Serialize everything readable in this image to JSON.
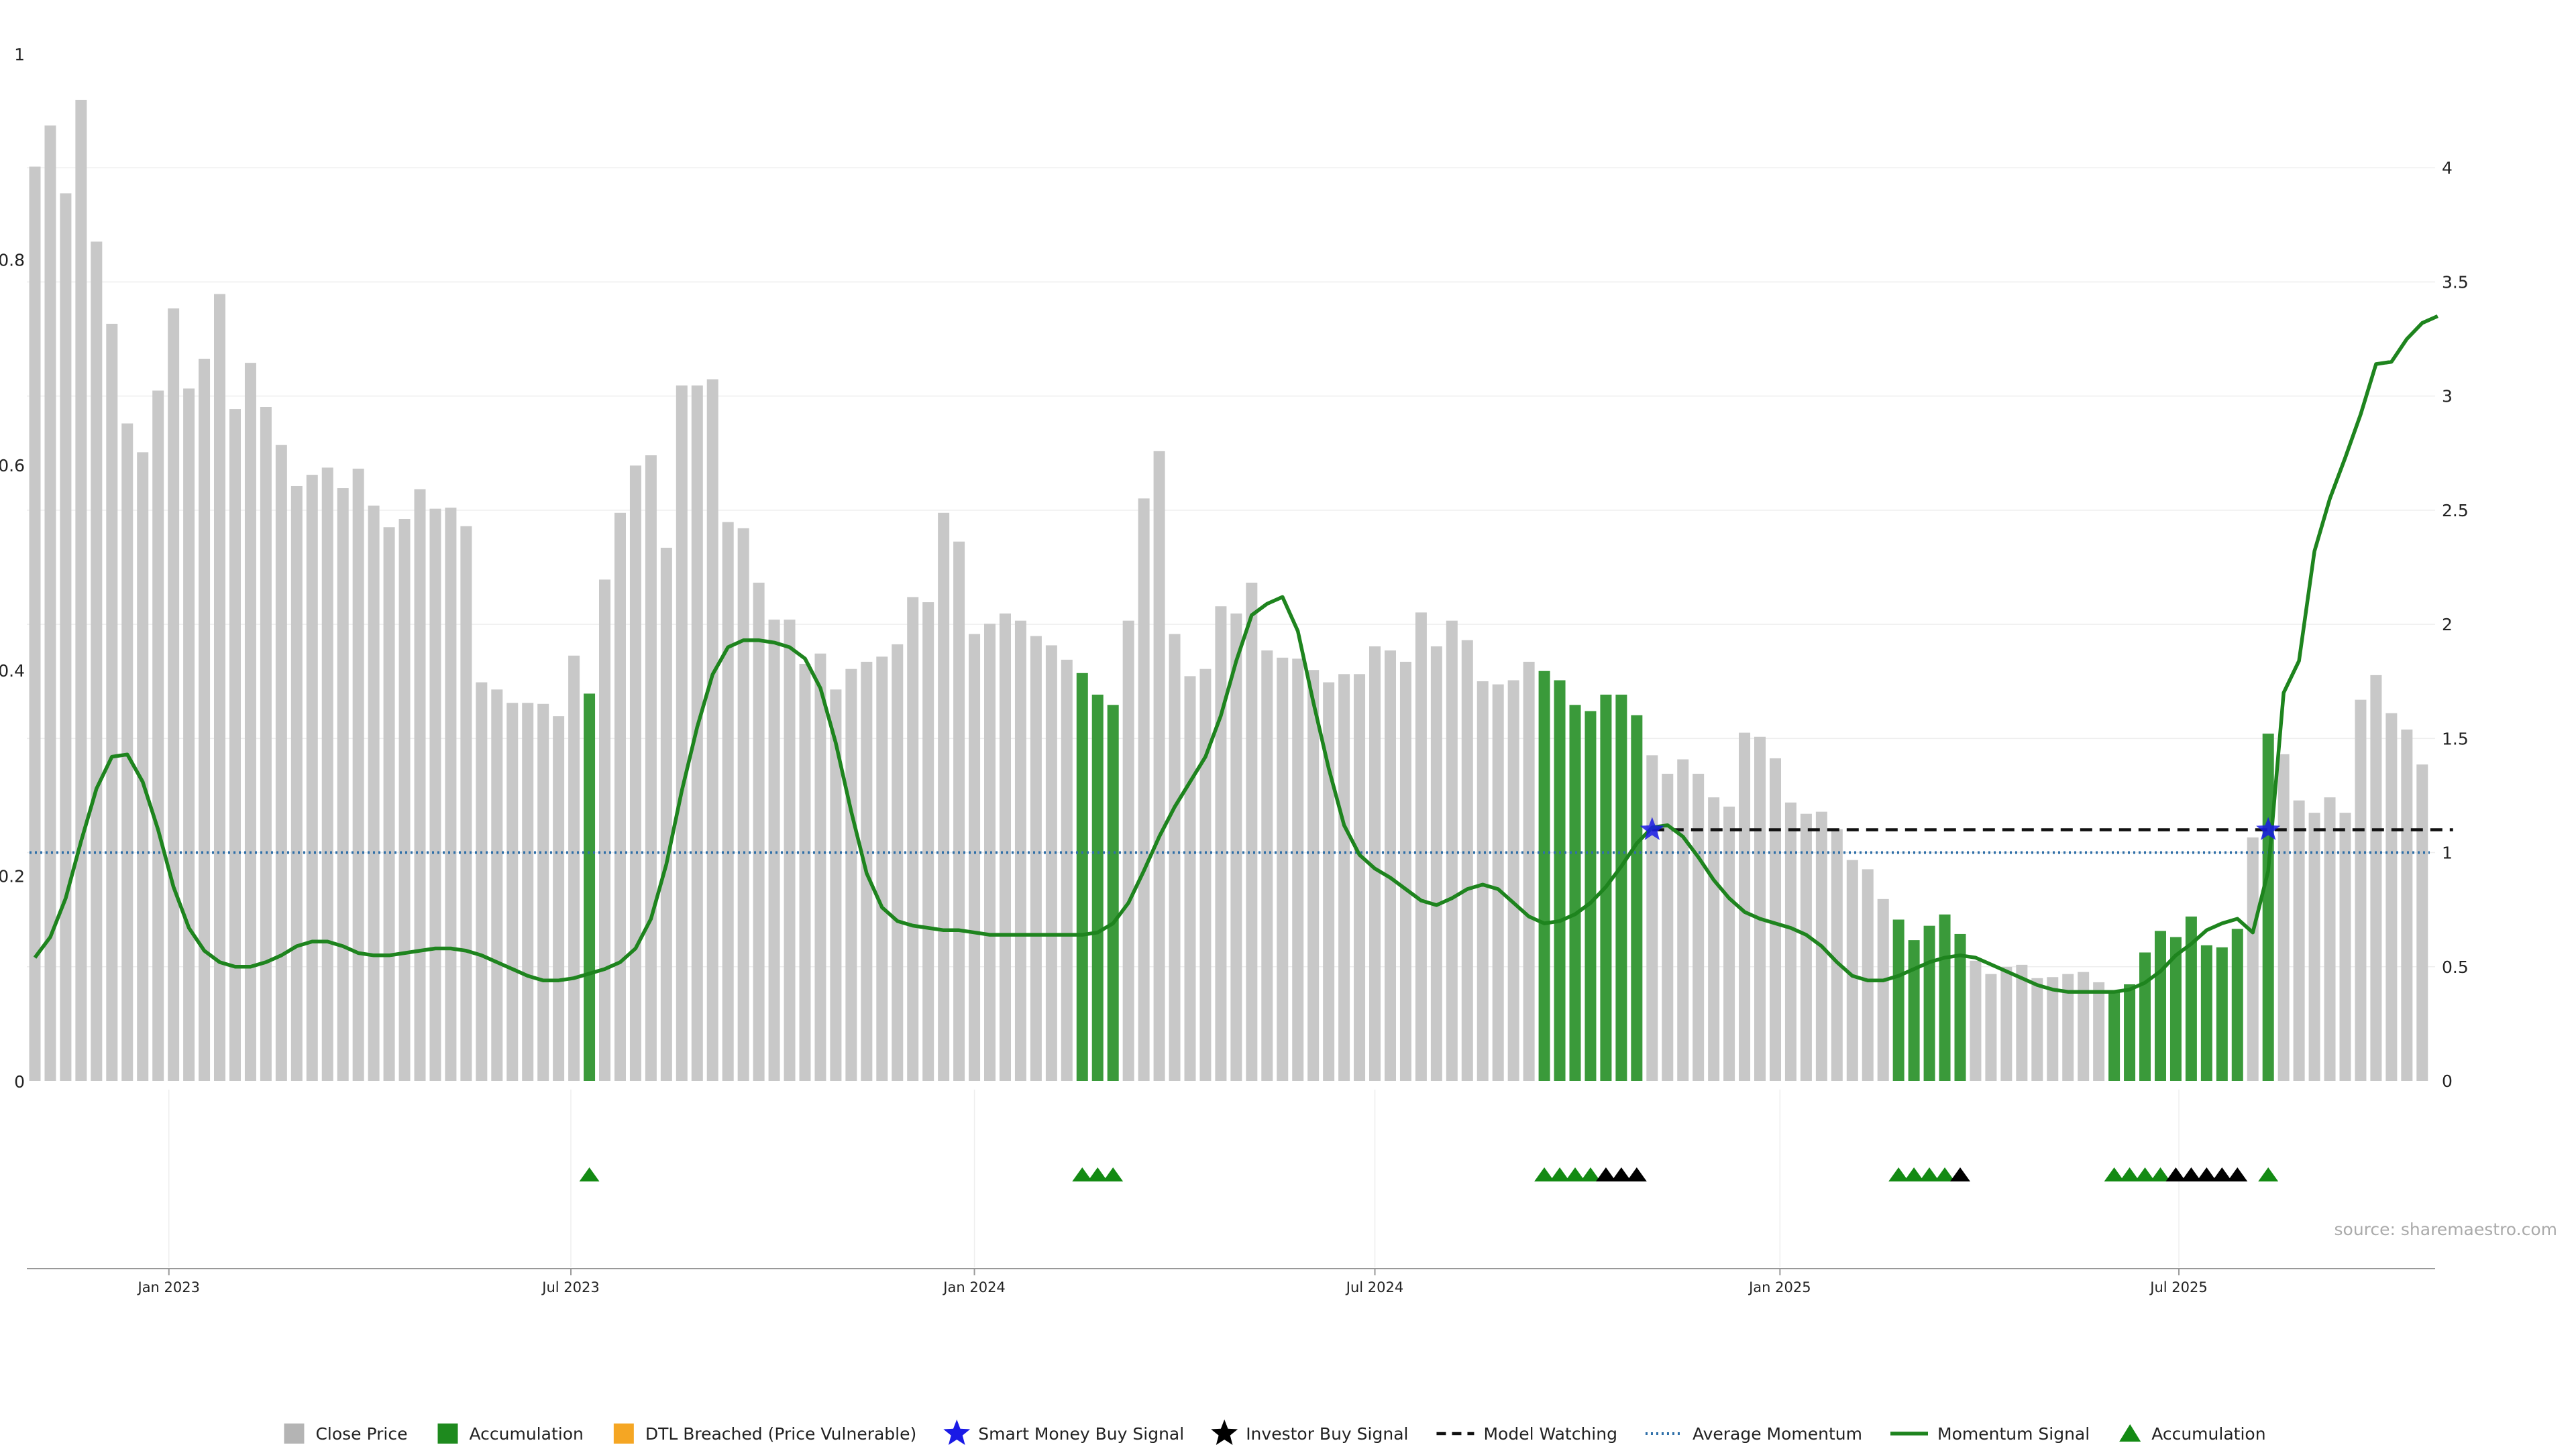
{
  "source_text": "source: sharemaestro.com",
  "colors": {
    "price_bar": "#c8c8c8",
    "accumulation_bar": "#3a9a3a",
    "dtl": "#f5a623",
    "momentum_line": "#1e841e",
    "average_momentum": "#2f6fa8",
    "model_watching": "#111111",
    "smart_money": "#1a1ae6",
    "investor": "#000000",
    "accum_marker": "#138a13",
    "grid": "#eeeeee",
    "axis": "#999999"
  },
  "legend": [
    {
      "key": "close-price",
      "label": "Close Price",
      "symbol": "square",
      "color": "#b4b4b4"
    },
    {
      "key": "accumulation-bar",
      "label": "Accumulation",
      "symbol": "square",
      "color": "#1e8a1e"
    },
    {
      "key": "dtl-breached",
      "label": "DTL Breached (Price Vulnerable)",
      "symbol": "square",
      "color": "#f5a623"
    },
    {
      "key": "smart-money",
      "label": "Smart Money Buy Signal",
      "symbol": "star",
      "color": "#1a1ae6"
    },
    {
      "key": "investor-buy",
      "label": "Investor Buy Signal",
      "symbol": "star",
      "color": "#000000"
    },
    {
      "key": "model-watching",
      "label": "Model Watching",
      "symbol": "dash",
      "color": "#111111"
    },
    {
      "key": "average-momentum",
      "label": "Average Momentum",
      "symbol": "dot",
      "color": "#2f6fa8"
    },
    {
      "key": "momentum-signal",
      "label": "Momentum Signal",
      "symbol": "line",
      "color": "#1e841e"
    },
    {
      "key": "accumulation-marker",
      "label": "Accumulation",
      "symbol": "triangle",
      "color": "#138a13"
    }
  ],
  "chart_data": {
    "type": "bar",
    "x_ticks": [
      {
        "week": 8.7,
        "label": "Jan 2023"
      },
      {
        "week": 34.8,
        "label": "Jul 2023"
      },
      {
        "week": 61.0,
        "label": "Jan 2024"
      },
      {
        "week": 87.0,
        "label": "Jul 2024"
      },
      {
        "week": 113.3,
        "label": "Jan 2025"
      },
      {
        "week": 139.2,
        "label": "Jul 2025"
      }
    ],
    "y_left": {
      "min": 0,
      "max": 1,
      "ticks": [
        0,
        0.2,
        0.4,
        0.6,
        0.8,
        1
      ],
      "tick_labels": [
        "0",
        "0.2",
        "0.4",
        "0.6",
        "0.8",
        "1"
      ]
    },
    "y_right": {
      "min": 0,
      "max": 4.5,
      "ticks": [
        0,
        0.5,
        1,
        1.5,
        2,
        2.5,
        3,
        3.5,
        4
      ],
      "tick_labels": [
        "0",
        "0.5",
        "1",
        "1.5",
        "2",
        "2.5",
        "3",
        "3.5",
        "4"
      ]
    },
    "grid": true,
    "legend_position": "bottom",
    "close_price": [
      0.89,
      0.93,
      0.864,
      0.955,
      0.817,
      0.737,
      0.64,
      0.612,
      0.672,
      0.752,
      0.674,
      0.703,
      0.766,
      0.654,
      0.699,
      0.656,
      0.619,
      0.579,
      0.59,
      0.597,
      0.577,
      0.596,
      0.56,
      0.539,
      0.547,
      0.576,
      0.557,
      0.558,
      0.54,
      0.388,
      0.381,
      0.368,
      0.368,
      0.367,
      0.355,
      0.414,
      0.377,
      0.488,
      0.553,
      0.599,
      0.609,
      0.519,
      0.677,
      0.677,
      0.683,
      0.544,
      0.538,
      0.485,
      0.449,
      0.449,
      0.406,
      0.416,
      0.381,
      0.401,
      0.408,
      0.413,
      0.425,
      0.471,
      0.466,
      0.553,
      0.525,
      0.435,
      0.445,
      0.455,
      0.448,
      0.433,
      0.424,
      0.41,
      0.397,
      0.376,
      0.366,
      0.448,
      0.567,
      0.613,
      0.435,
      0.394,
      0.401,
      0.462,
      0.455,
      0.485,
      0.419,
      0.412,
      0.411,
      0.4,
      0.388,
      0.396,
      0.396,
      0.423,
      0.419,
      0.408,
      0.456,
      0.423,
      0.448,
      0.429,
      0.389,
      0.386,
      0.39,
      0.408,
      0.399,
      0.39,
      0.366,
      0.36,
      0.376,
      0.376,
      0.356,
      0.317,
      0.299,
      0.313,
      0.299,
      0.276,
      0.267,
      0.339,
      0.335,
      0.314,
      0.271,
      0.26,
      0.262,
      0.245,
      0.215,
      0.206,
      0.177,
      0.157,
      0.137,
      0.151,
      0.162,
      0.143,
      0.117,
      0.104,
      0.111,
      0.113,
      0.1,
      0.101,
      0.104,
      0.106,
      0.096,
      0.088,
      0.094,
      0.125,
      0.146,
      0.14,
      0.16,
      0.132,
      0.13,
      0.148,
      0.237,
      0.338,
      0.318,
      0.273,
      0.261,
      0.276,
      0.261,
      0.371,
      0.395,
      0.358,
      0.342,
      0.308
    ],
    "accumulation_weeks": [
      36,
      68,
      69,
      70,
      98,
      99,
      100,
      101,
      102,
      103,
      104,
      121,
      122,
      123,
      124,
      125,
      135,
      136,
      137,
      138,
      139,
      140,
      141,
      142,
      143,
      145
    ],
    "average_momentum": 1.0,
    "model_watching": {
      "start_week": 105,
      "end_week": 157,
      "value": 1.1
    },
    "momentum_signal": [
      [
        0,
        0.54
      ],
      [
        1,
        0.63
      ],
      [
        2,
        0.8
      ],
      [
        3,
        1.05
      ],
      [
        4,
        1.28
      ],
      [
        5,
        1.42
      ],
      [
        6,
        1.43
      ],
      [
        7,
        1.31
      ],
      [
        8,
        1.1
      ],
      [
        9,
        0.85
      ],
      [
        10,
        0.67
      ],
      [
        11,
        0.57
      ],
      [
        12,
        0.52
      ],
      [
        13,
        0.5
      ],
      [
        14,
        0.5
      ],
      [
        15,
        0.52
      ],
      [
        16,
        0.55
      ],
      [
        17,
        0.59
      ],
      [
        18,
        0.61
      ],
      [
        19,
        0.61
      ],
      [
        20,
        0.59
      ],
      [
        21,
        0.56
      ],
      [
        22,
        0.55
      ],
      [
        23,
        0.55
      ],
      [
        24,
        0.56
      ],
      [
        25,
        0.57
      ],
      [
        26,
        0.58
      ],
      [
        27,
        0.58
      ],
      [
        28,
        0.57
      ],
      [
        29,
        0.55
      ],
      [
        30,
        0.52
      ],
      [
        31,
        0.49
      ],
      [
        32,
        0.46
      ],
      [
        33,
        0.44
      ],
      [
        34,
        0.44
      ],
      [
        35,
        0.45
      ],
      [
        36,
        0.47
      ],
      [
        37,
        0.49
      ],
      [
        38,
        0.52
      ],
      [
        39,
        0.58
      ],
      [
        40,
        0.71
      ],
      [
        41,
        0.95
      ],
      [
        42,
        1.27
      ],
      [
        43,
        1.55
      ],
      [
        44,
        1.78
      ],
      [
        45,
        1.9
      ],
      [
        46,
        1.93
      ],
      [
        47,
        1.93
      ],
      [
        48,
        1.92
      ],
      [
        49,
        1.9
      ],
      [
        50,
        1.85
      ],
      [
        51,
        1.72
      ],
      [
        52,
        1.48
      ],
      [
        53,
        1.18
      ],
      [
        54,
        0.91
      ],
      [
        55,
        0.76
      ],
      [
        56,
        0.7
      ],
      [
        57,
        0.68
      ],
      [
        58,
        0.67
      ],
      [
        59,
        0.66
      ],
      [
        60,
        0.66
      ],
      [
        61,
        0.65
      ],
      [
        62,
        0.64
      ],
      [
        63,
        0.64
      ],
      [
        64,
        0.64
      ],
      [
        65,
        0.64
      ],
      [
        66,
        0.64
      ],
      [
        67,
        0.64
      ],
      [
        68,
        0.64
      ],
      [
        69,
        0.65
      ],
      [
        70,
        0.69
      ],
      [
        71,
        0.78
      ],
      [
        72,
        0.92
      ],
      [
        73,
        1.07
      ],
      [
        74,
        1.2
      ],
      [
        75,
        1.31
      ],
      [
        76,
        1.42
      ],
      [
        77,
        1.6
      ],
      [
        78,
        1.84
      ],
      [
        79,
        2.04
      ],
      [
        80,
        2.09
      ],
      [
        81,
        2.12
      ],
      [
        82,
        1.97
      ],
      [
        83,
        1.66
      ],
      [
        84,
        1.37
      ],
      [
        85,
        1.12
      ],
      [
        86,
        0.99
      ],
      [
        87,
        0.93
      ],
      [
        88,
        0.89
      ],
      [
        89,
        0.84
      ],
      [
        90,
        0.79
      ],
      [
        91,
        0.77
      ],
      [
        92,
        0.8
      ],
      [
        93,
        0.84
      ],
      [
        94,
        0.86
      ],
      [
        95,
        0.84
      ],
      [
        96,
        0.78
      ],
      [
        97,
        0.72
      ],
      [
        98,
        0.69
      ],
      [
        99,
        0.7
      ],
      [
        100,
        0.73
      ],
      [
        101,
        0.78
      ],
      [
        102,
        0.85
      ],
      [
        103,
        0.94
      ],
      [
        104,
        1.04
      ],
      [
        105,
        1.11
      ],
      [
        106,
        1.12
      ],
      [
        107,
        1.07
      ],
      [
        108,
        0.98
      ],
      [
        109,
        0.88
      ],
      [
        110,
        0.8
      ],
      [
        111,
        0.74
      ],
      [
        112,
        0.71
      ],
      [
        113,
        0.69
      ],
      [
        114,
        0.67
      ],
      [
        115,
        0.64
      ],
      [
        116,
        0.59
      ],
      [
        117,
        0.52
      ],
      [
        118,
        0.46
      ],
      [
        119,
        0.44
      ],
      [
        120,
        0.44
      ],
      [
        121,
        0.46
      ],
      [
        122,
        0.49
      ],
      [
        123,
        0.52
      ],
      [
        124,
        0.54
      ],
      [
        125,
        0.55
      ],
      [
        126,
        0.54
      ],
      [
        127,
        0.51
      ],
      [
        128,
        0.48
      ],
      [
        129,
        0.45
      ],
      [
        130,
        0.42
      ],
      [
        131,
        0.4
      ],
      [
        132,
        0.39
      ],
      [
        133,
        0.39
      ],
      [
        134,
        0.39
      ],
      [
        135,
        0.39
      ],
      [
        136,
        0.4
      ],
      [
        137,
        0.43
      ],
      [
        138,
        0.48
      ],
      [
        139,
        0.55
      ],
      [
        140,
        0.6
      ],
      [
        141,
        0.66
      ],
      [
        142,
        0.69
      ],
      [
        143,
        0.71
      ],
      [
        144,
        0.65
      ],
      [
        145,
        0.92
      ],
      [
        146,
        1.7
      ],
      [
        147,
        1.84
      ],
      [
        148,
        2.32
      ],
      [
        149,
        2.55
      ],
      [
        150,
        2.73
      ],
      [
        151,
        2.92
      ],
      [
        152,
        3.14
      ],
      [
        153,
        3.15
      ],
      [
        154,
        3.25
      ],
      [
        155,
        3.32
      ],
      [
        156,
        3.35
      ]
    ],
    "smart_money_signals": [
      {
        "week": 105,
        "value": 1.1
      },
      {
        "week": 145,
        "value": 1.1
      }
    ],
    "accumulation_markers": [
      36,
      68,
      69,
      70,
      98,
      99,
      100,
      101,
      135,
      136,
      137,
      138,
      145,
      121,
      122,
      123,
      124
    ],
    "investor_markers": [
      102,
      103,
      104,
      125,
      139,
      140,
      141,
      142,
      143
    ]
  }
}
